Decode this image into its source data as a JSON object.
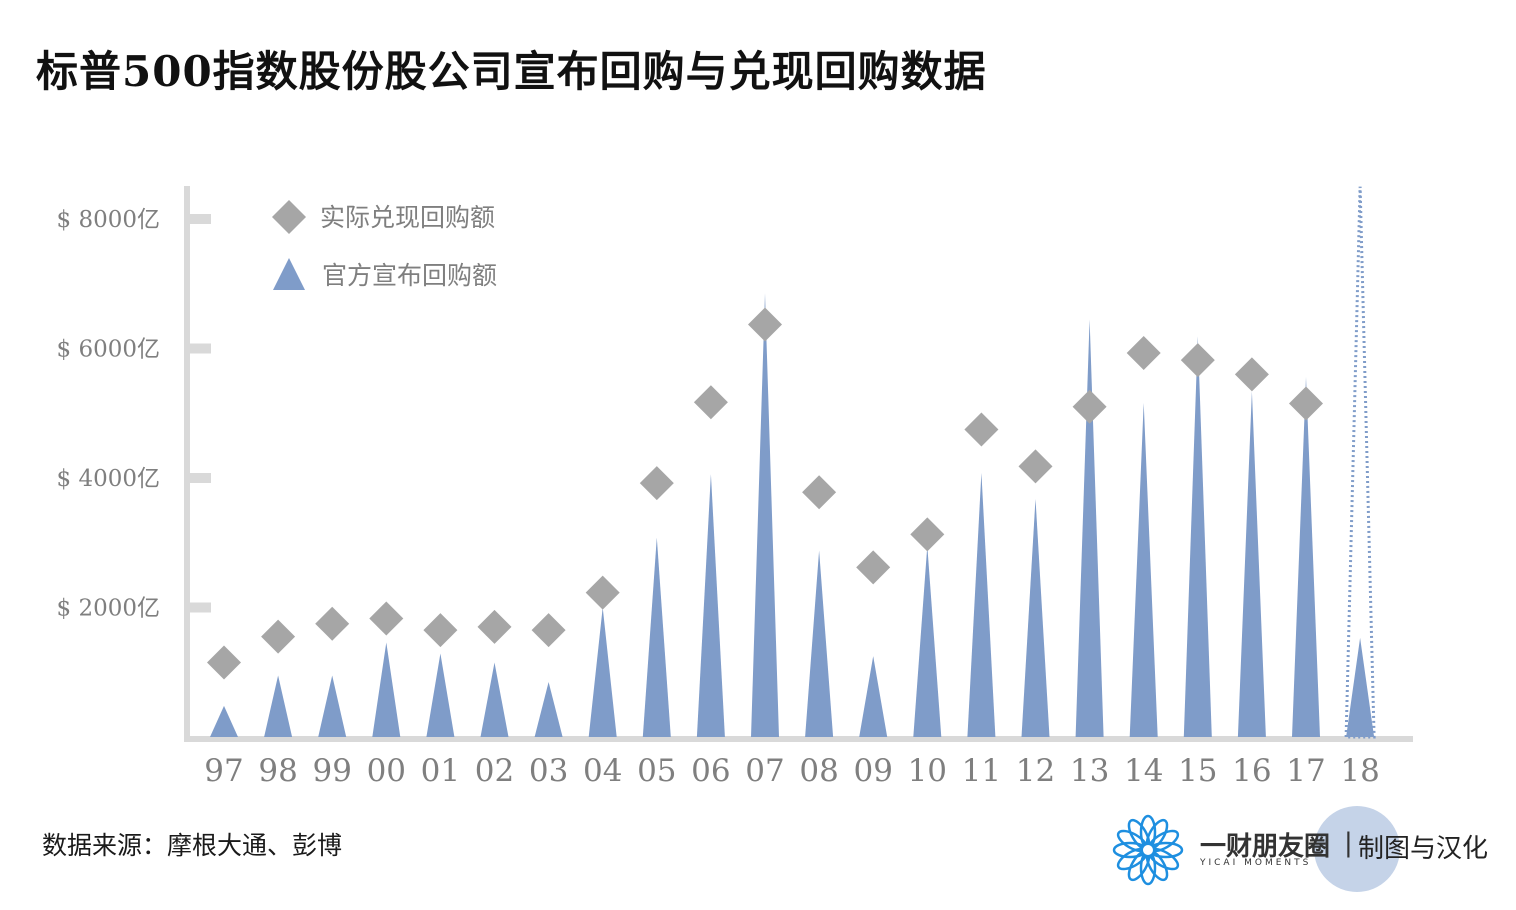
{
  "title": "标普500指数股份股公司宣布回购与兑现回购数据",
  "source": "数据来源：摩根大通、彭博",
  "brand": {
    "name": "一财朋友圈",
    "name_en": "YICAI MOMENTS",
    "separator": "|",
    "credit": "制图与汉化"
  },
  "colors": {
    "actual": "#a6a6a6",
    "announced": "#7f9cc9",
    "axis": "#d9d9d9",
    "tick_text": "#7f7f7f",
    "logo": "#1e8fe0"
  },
  "chart_data": {
    "type": "scatter",
    "title": "",
    "xlabel": "",
    "ylabel": "",
    "categories": [
      "97",
      "98",
      "99",
      "00",
      "01",
      "02",
      "03",
      "04",
      "05",
      "06",
      "07",
      "08",
      "09",
      "10",
      "11",
      "12",
      "13",
      "14",
      "15",
      "16",
      "17",
      "18"
    ],
    "ylim": [
      0,
      8500
    ],
    "yticks": [
      2000,
      4000,
      6000,
      8000
    ],
    "ytick_labels": [
      "$ 2000亿",
      "$ 4000亿",
      "$ 6000亿",
      "$ 8000亿"
    ],
    "legend_position": "top-left",
    "series": [
      {
        "name": "实际兑现回购额",
        "marker": "diamond",
        "values": [
          1150,
          1550,
          1750,
          1830,
          1650,
          1700,
          1650,
          2230,
          3920,
          5170,
          6370,
          3780,
          2620,
          3130,
          4750,
          4180,
          5100,
          5930,
          5820,
          5600,
          5150,
          null
        ]
      },
      {
        "name": "官方宣布回购额",
        "marker": "triangle-spike",
        "values": [
          480,
          950,
          950,
          1460,
          1290,
          1150,
          850,
          2000,
          3080,
          4060,
          6850,
          2880,
          1250,
          2950,
          4080,
          3680,
          6450,
          5160,
          6190,
          5340,
          5560,
          1530
        ],
        "projection_last": 8500
      }
    ]
  }
}
